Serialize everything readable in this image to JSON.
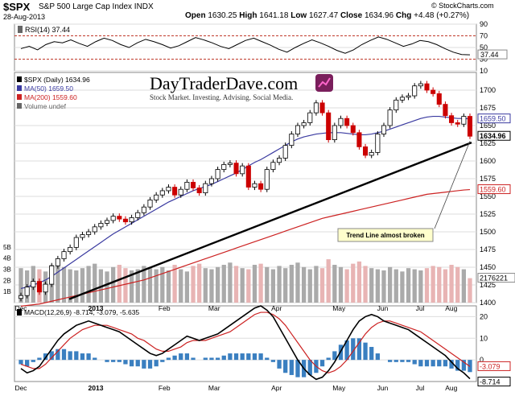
{
  "header": {
    "symbol": "$SPX",
    "name": "S&P 500 Large Cap Index INDX",
    "date": "28-Aug-2013",
    "open_label": "Open",
    "open": "1630.25",
    "high_label": "High",
    "high": "1641.18",
    "low_label": "Low",
    "low": "1627.47",
    "close_label": "Close",
    "close": "1634.96",
    "chg_label": "Chg",
    "chg": "+4.48 (+0.27%)",
    "watermark": "© StockCharts.com"
  },
  "logo": {
    "title": "DayTraderDave.com",
    "tagline": "Stock Market. Investing. Advising. Social Media."
  },
  "colors": {
    "up": "#000000",
    "down": "#cc0000",
    "ma50": "#3a3aa0",
    "ma200": "#cc2222",
    "volume_up": "#aaaaaa",
    "volume_down": "#e8b4b4",
    "macd_hist": "#3a7fc0",
    "grid": "#dddddd",
    "trendline": "#000000"
  },
  "chart_data": [
    {
      "type": "line",
      "panel": "rsi",
      "legend": "RSI(14) 37.44",
      "ylim": [
        10,
        90
      ],
      "ticks": [
        "90",
        "70",
        "50",
        "30",
        "10"
      ],
      "current_label": "37.44",
      "series": [
        {
          "name": "RSI(14)",
          "values": [
            48,
            52,
            46,
            55,
            60,
            58,
            63,
            57,
            52,
            60,
            66,
            62,
            55,
            50,
            58,
            64,
            60,
            55,
            49,
            53,
            60,
            67,
            63,
            58,
            52,
            48,
            55,
            62,
            66,
            60,
            54,
            47,
            42,
            50,
            57,
            63,
            58,
            52,
            45,
            40,
            46,
            55,
            62,
            68,
            64,
            58,
            52,
            56,
            62,
            60,
            55,
            48,
            42,
            38,
            37.44
          ]
        }
      ]
    },
    {
      "type": "line",
      "panel": "price",
      "legend": [
        "$SPX (Daily) 1634.96",
        "MA(50) 1659.50",
        "MA(200) 1559.60",
        "Volume undef"
      ],
      "ylim": [
        1400,
        1725
      ],
      "ticks": [
        "1700",
        "1675",
        "1650",
        "1625",
        "1600",
        "1575",
        "1550",
        "1525",
        "1500",
        "1475",
        "1450",
        "1425",
        "1400"
      ],
      "volume_ticks": [
        "5B",
        "4B",
        "3B",
        "2B",
        "1B"
      ],
      "current_labels": {
        "ma50": "1659.50",
        "close": "1634.96",
        "ma200": "1559.60",
        "volume": "2176221"
      },
      "annotation": "Trend Line almost broken",
      "x_ticks": [
        "Dec",
        "2013",
        "Feb",
        "Mar",
        "Apr",
        "May",
        "Jun",
        "Jul",
        "Aug"
      ],
      "series": [
        {
          "name": "$SPX",
          "values": [
            1410,
            1422,
            1430,
            1415,
            1426,
            1452,
            1462,
            1472,
            1478,
            1492,
            1496,
            1500,
            1507,
            1512,
            1516,
            1522,
            1518,
            1514,
            1520,
            1527,
            1535,
            1545,
            1552,
            1558,
            1563,
            1552,
            1560,
            1570,
            1562,
            1555,
            1568,
            1575,
            1588,
            1595,
            1597,
            1582,
            1593,
            1563,
            1568,
            1560,
            1588,
            1598,
            1604,
            1622,
            1638,
            1650,
            1654,
            1668,
            1682,
            1668,
            1630,
            1650,
            1660,
            1650,
            1640,
            1620,
            1608,
            1612,
            1638,
            1650,
            1672,
            1686,
            1690,
            1692,
            1706,
            1709,
            1700,
            1695,
            1680,
            1664,
            1654,
            1652,
            1663,
            1634.96
          ]
        },
        {
          "name": "MA(50)",
          "values": [
            1420,
            1422,
            1425,
            1428,
            1432,
            1437,
            1443,
            1449,
            1455,
            1461,
            1467,
            1473,
            1479,
            1485,
            1491,
            1497,
            1502,
            1507,
            1512,
            1517,
            1522,
            1527,
            1532,
            1537,
            1542,
            1546,
            1550,
            1554,
            1558,
            1561,
            1564,
            1567,
            1571,
            1575,
            1579,
            1583,
            1588,
            1593,
            1598,
            1602,
            1607,
            1612,
            1617,
            1622,
            1627,
            1631,
            1634,
            1636,
            1638,
            1639,
            1640,
            1640,
            1640,
            1639,
            1638,
            1637,
            1637,
            1638,
            1640,
            1642,
            1645,
            1648,
            1651,
            1654,
            1657,
            1660,
            1662,
            1663,
            1663,
            1662,
            1661,
            1660,
            1660,
            1659.5
          ]
        },
        {
          "name": "MA(200)",
          "values": [
            1395,
            1396,
            1397,
            1398,
            1400,
            1402,
            1404,
            1406,
            1408,
            1410,
            1412,
            1414,
            1416,
            1418,
            1420,
            1422,
            1424,
            1426,
            1428,
            1430,
            1432,
            1435,
            1438,
            1441,
            1444,
            1447,
            1450,
            1453,
            1456,
            1459,
            1462,
            1465,
            1468,
            1471,
            1474,
            1477,
            1480,
            1483,
            1486,
            1489,
            1492,
            1495,
            1498,
            1501,
            1504,
            1507,
            1510,
            1513,
            1516,
            1519,
            1521,
            1523,
            1525,
            1527,
            1529,
            1531,
            1533,
            1535,
            1537,
            1539,
            1541,
            1543,
            1545,
            1547,
            1549,
            1551,
            1553,
            1554,
            1555,
            1556,
            1557,
            1558,
            1559,
            1559.6
          ]
        },
        {
          "name": "Volume",
          "values": [
            3.1,
            2.9,
            3.3,
            3.0,
            2.8,
            3.4,
            3.6,
            3.2,
            3.0,
            2.9,
            3.1,
            3.3,
            3.5,
            3.0,
            2.8,
            3.2,
            3.4,
            3.1,
            2.9,
            3.0,
            3.3,
            3.1,
            3.0,
            3.2,
            2.9,
            3.4,
            3.0,
            2.8,
            3.3,
            3.5,
            3.1,
            3.0,
            3.2,
            3.4,
            3.6,
            3.3,
            3.1,
            3.0,
            3.4,
            3.5,
            3.2,
            3.0,
            3.3,
            3.1,
            3.4,
            3.6,
            3.2,
            3.0,
            3.3,
            3.1,
            3.9,
            3.4,
            3.2,
            3.0,
            3.5,
            3.7,
            3.3,
            3.1,
            3.0,
            2.9,
            3.2,
            3.0,
            2.8,
            3.1,
            3.0,
            2.9,
            3.1,
            3.3,
            3.2,
            3.0,
            3.4,
            3.2,
            3.0,
            2.2
          ]
        }
      ]
    },
    {
      "type": "line",
      "panel": "macd",
      "legend": "MACD(12,26,9) -8.714, -3.079, -5.635",
      "ylim": [
        -10,
        25
      ],
      "ticks": [
        "20",
        "10",
        "0"
      ],
      "current_labels": {
        "signal": "-3.079",
        "macd": "-8.714"
      },
      "x_ticks": [
        "Dec",
        "2013",
        "Feb",
        "Mar",
        "Apr",
        "May",
        "Jun",
        "Jul",
        "Aug"
      ],
      "series": [
        {
          "name": "MACD",
          "values": [
            -4,
            -6,
            -5,
            -3,
            1,
            5,
            9,
            12,
            14,
            16,
            17,
            18,
            17,
            16,
            15,
            14,
            13,
            11,
            9,
            7,
            5,
            3,
            2,
            3,
            5,
            7,
            9,
            11,
            10,
            9,
            10,
            11,
            12,
            14,
            16,
            18,
            20,
            22,
            24,
            25,
            23,
            20,
            15,
            10,
            5,
            0,
            -4,
            -7,
            -9,
            -8,
            -5,
            -1,
            4,
            9,
            14,
            18,
            20,
            21,
            20,
            18,
            17,
            16,
            15,
            14,
            12,
            10,
            8,
            6,
            4,
            2,
            -1,
            -4,
            -6,
            -8.714
          ]
        },
        {
          "name": "Signal",
          "values": [
            -2,
            -3,
            -4,
            -4,
            -2,
            1,
            4,
            7,
            10,
            12,
            14,
            15,
            16,
            16,
            16,
            15,
            14,
            13,
            12,
            10,
            9,
            7,
            5,
            4,
            4,
            5,
            6,
            8,
            9,
            9,
            9,
            10,
            11,
            12,
            13,
            15,
            17,
            19,
            21,
            22,
            22,
            21,
            19,
            16,
            12,
            8,
            4,
            0,
            -3,
            -5,
            -6,
            -5,
            -3,
            0,
            4,
            8,
            12,
            15,
            17,
            18,
            18,
            17,
            16,
            15,
            14,
            13,
            11,
            9,
            7,
            5,
            3,
            1,
            -1,
            -3.079
          ]
        },
        {
          "name": "Histogram",
          "values": [
            -2,
            -3,
            -1,
            1,
            3,
            4,
            5,
            5,
            4,
            4,
            3,
            3,
            1,
            0,
            -1,
            -1,
            -1,
            -2,
            -3,
            -3,
            -4,
            -4,
            -3,
            -1,
            1,
            2,
            3,
            3,
            1,
            0,
            1,
            1,
            1,
            2,
            3,
            3,
            3,
            3,
            3,
            3,
            1,
            -1,
            -4,
            -6,
            -7,
            -8,
            -8,
            -7,
            -6,
            -3,
            1,
            4,
            7,
            9,
            10,
            10,
            8,
            6,
            3,
            0,
            -1,
            -1,
            -1,
            -1,
            -2,
            -3,
            -3,
            -3,
            -3,
            -3,
            -4,
            -5,
            -5,
            -5.635
          ]
        }
      ]
    }
  ]
}
